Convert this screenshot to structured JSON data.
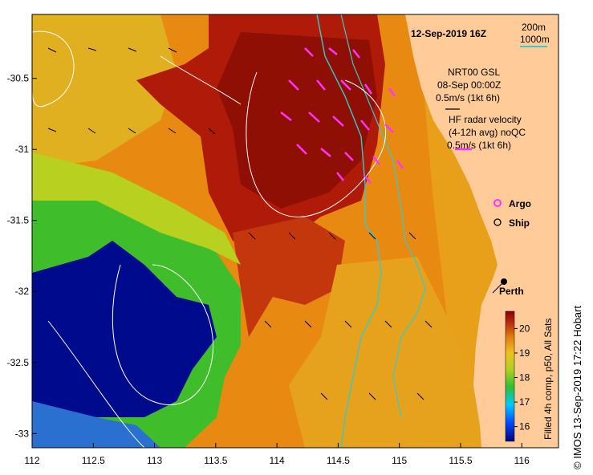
{
  "title": "12-Sep-2019 16Z",
  "depth_contours": {
    "shallow": "200m",
    "deep": "1000m",
    "color_deep": "#33cccc"
  },
  "wind": {
    "source": "NRT00 GSL",
    "date": "08-Sep 00:00Z",
    "scale": "0.5m/s (1kt 6h)"
  },
  "radar": {
    "title": "HF radar velocity",
    "subtitle": "(4-12h avg) noQC",
    "scale": "0.5m/s (1kt 6h)",
    "color": "#ff33ff"
  },
  "legend": {
    "argo_label": "Argo",
    "ship_label": "Ship"
  },
  "city": {
    "name": "Perth"
  },
  "colorbar": {
    "label": "Filled 4h comp, p50, All Sats",
    "ticks": [
      "16",
      "17",
      "18",
      "19",
      "20"
    ],
    "min": 15.4,
    "max": 20.7
  },
  "axes": {
    "x_ticks": [
      "112",
      "112.5",
      "113",
      "113.5",
      "114",
      "114.5",
      "115",
      "115.5",
      "116"
    ],
    "y_ticks": [
      "-30.5",
      "-31",
      "-31.5",
      "-32",
      "-32.5",
      "-33"
    ],
    "lon_range": [
      112,
      116.3
    ],
    "lat_range": [
      -33.1,
      -30.05
    ]
  },
  "credit": "© IMOS 13-Sep-2019 17:22 Hobart",
  "colors": {
    "land": "#ffcc99",
    "cold": "#000080",
    "warm": "#990000"
  }
}
